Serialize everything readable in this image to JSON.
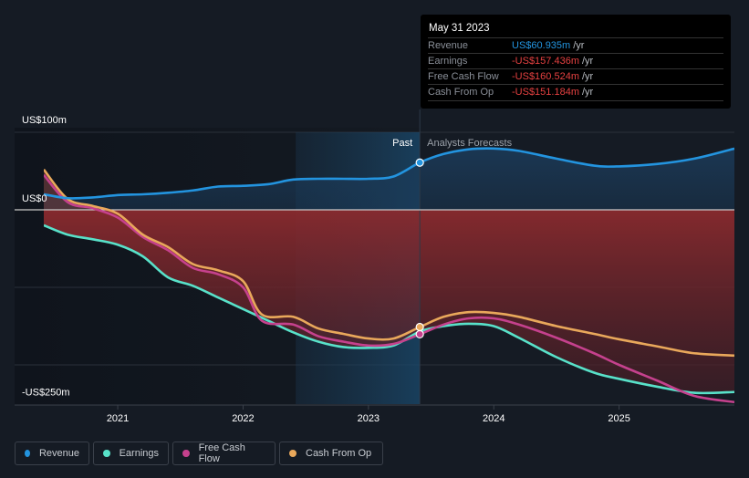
{
  "tooltip": {
    "date": "May 31 2023",
    "rows": [
      {
        "label": "Revenue",
        "value": "US$60.935m",
        "unit": "/yr",
        "color": "#2394df"
      },
      {
        "label": "Earnings",
        "value": "-US$157.436m",
        "unit": "/yr",
        "color": "#e64141"
      },
      {
        "label": "Free Cash Flow",
        "value": "-US$160.524m",
        "unit": "/yr",
        "color": "#e64141"
      },
      {
        "label": "Cash From Op",
        "value": "-US$151.184m",
        "unit": "/yr",
        "color": "#e64141"
      }
    ]
  },
  "chart_data": {
    "type": "line",
    "title": "",
    "xlabel": "",
    "ylabel": "",
    "y_tick_labels": [
      "US$100m",
      "US$0",
      "-US$250m"
    ],
    "x_tick_labels": [
      "2021",
      "2022",
      "2023",
      "2024",
      "2025"
    ],
    "x_ticks": [
      2021,
      2022,
      2023,
      2024,
      2025
    ],
    "xlim": [
      2020.41,
      2025.92
    ],
    "ylim": [
      -250,
      100
    ],
    "gridlines_y": [
      100,
      0,
      -100,
      -200
    ],
    "past_label": "Past",
    "forecast_label": "Analysts Forecasts",
    "past_end": 2023.41,
    "shaded_period": [
      2022.42,
      2023.41
    ],
    "legend_position": "bottom-left",
    "series": [
      {
        "name": "Revenue",
        "color": "#2394df",
        "x": [
          2020.41,
          2020.6,
          2020.8,
          2021.0,
          2021.2,
          2021.4,
          2021.6,
          2021.8,
          2022.0,
          2022.2,
          2022.4,
          2022.6,
          2022.8,
          2023.0,
          2023.2,
          2023.41,
          2023.6,
          2023.8,
          2024.0,
          2024.2,
          2024.5,
          2024.8,
          2025.0,
          2025.3,
          2025.6,
          2025.92
        ],
        "values": [
          20,
          15,
          16,
          19,
          20,
          22,
          25,
          30,
          31,
          33,
          39,
          40,
          40,
          40,
          43,
          60.9,
          72,
          78,
          79,
          76,
          66,
          57,
          56,
          59,
          66,
          79
        ]
      },
      {
        "name": "Earnings",
        "color": "#58e1c9",
        "x": [
          2020.41,
          2020.6,
          2020.8,
          2021.0,
          2021.2,
          2021.4,
          2021.6,
          2021.8,
          2022.0,
          2022.2,
          2022.4,
          2022.6,
          2022.8,
          2023.0,
          2023.2,
          2023.41,
          2023.6,
          2023.8,
          2024.0,
          2024.2,
          2024.5,
          2024.8,
          2025.0,
          2025.3,
          2025.6,
          2025.92
        ],
        "values": [
          -20,
          -32,
          -38,
          -45,
          -60,
          -87,
          -98,
          -113,
          -128,
          -143,
          -158,
          -170,
          -177,
          -178,
          -175,
          -157,
          -150,
          -147,
          -150,
          -165,
          -190,
          -210,
          -218,
          -228,
          -236,
          -235
        ]
      },
      {
        "name": "Free Cash Flow",
        "color": "#c5418d",
        "x": [
          2020.41,
          2020.6,
          2020.8,
          2021.0,
          2021.2,
          2021.4,
          2021.6,
          2021.8,
          2022.0,
          2022.15,
          2022.4,
          2022.6,
          2022.8,
          2023.0,
          2023.2,
          2023.41,
          2023.6,
          2023.8,
          2024.0,
          2024.2,
          2024.5,
          2024.8,
          2025.0,
          2025.3,
          2025.6,
          2025.92
        ],
        "values": [
          45,
          10,
          2,
          -10,
          -35,
          -52,
          -75,
          -83,
          -100,
          -143,
          -148,
          -163,
          -170,
          -175,
          -173,
          -160.5,
          -148,
          -140,
          -140,
          -148,
          -165,
          -185,
          -200,
          -220,
          -240,
          -248
        ]
      },
      {
        "name": "Cash From Op",
        "color": "#e9a85b",
        "x": [
          2020.41,
          2020.6,
          2020.8,
          2021.0,
          2021.2,
          2021.4,
          2021.6,
          2021.8,
          2022.0,
          2022.15,
          2022.4,
          2022.6,
          2022.8,
          2023.0,
          2023.2,
          2023.41,
          2023.6,
          2023.8,
          2024.0,
          2024.2,
          2024.5,
          2024.8,
          2025.0,
          2025.3,
          2025.6,
          2025.92
        ],
        "values": [
          52,
          14,
          5,
          -5,
          -32,
          -48,
          -70,
          -78,
          -92,
          -135,
          -138,
          -153,
          -160,
          -166,
          -166,
          -151.2,
          -138,
          -132,
          -133,
          -138,
          -150,
          -160,
          -167,
          -176,
          -185,
          -188
        ]
      }
    ]
  },
  "legend": [
    {
      "label": "Revenue",
      "color": "#2394df"
    },
    {
      "label": "Earnings",
      "color": "#58e1c9"
    },
    {
      "label": "Free Cash Flow",
      "color": "#c5418d"
    },
    {
      "label": "Cash From Op",
      "color": "#e9a85b"
    }
  ]
}
